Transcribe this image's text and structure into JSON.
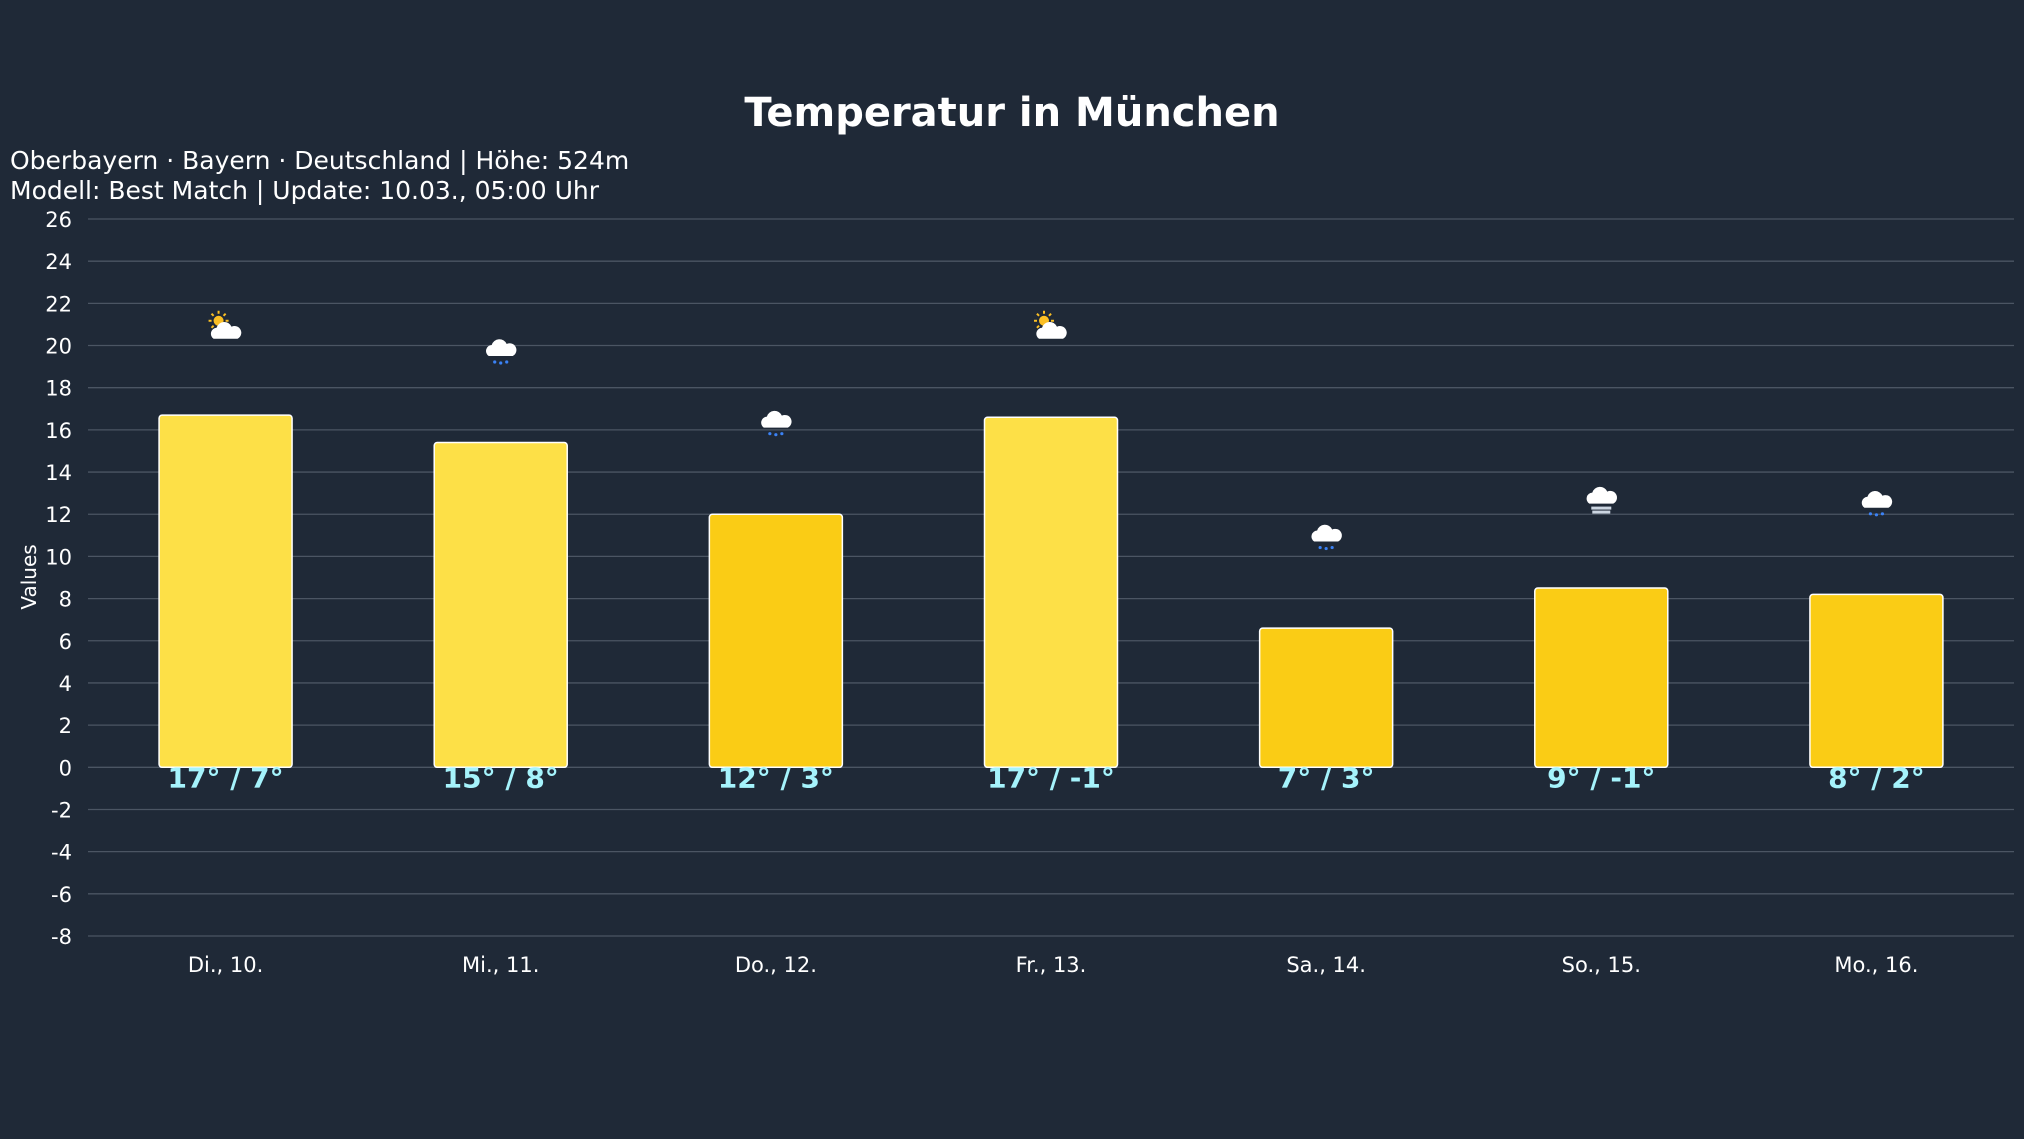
{
  "chart_data": {
    "type": "bar",
    "title": "Temperatur in München",
    "subtitle_lines": [
      "Oberbayern · Bayern · Deutschland | Höhe: 524m",
      "Modell: Best Match | Update: 10.03., 05:00 Uhr"
    ],
    "xlabel": "",
    "ylabel": "Values",
    "ylim": [
      -8,
      26
    ],
    "yticks": [
      -8,
      -6,
      -4,
      -2,
      0,
      2,
      4,
      6,
      8,
      10,
      12,
      14,
      16,
      18,
      20,
      22,
      24,
      26
    ],
    "grid": true,
    "legend": "none",
    "categories": [
      "Di., 10.",
      "Mi., 11.",
      "Do., 12.",
      "Fr., 13.",
      "Sa., 14.",
      "So., 15.",
      "Mo., 16."
    ],
    "values": [
      16.7,
      15.4,
      12.0,
      16.6,
      6.6,
      8.5,
      8.2
    ],
    "data_labels": [
      "17° / 7°",
      "15° / 8°",
      "12° / 3°",
      "17° / -1°",
      "7° / 3°",
      "9° / -1°",
      "8° / 2°"
    ],
    "weather_icons": [
      "partly-cloudy",
      "drizzle",
      "drizzle",
      "partly-cloudy",
      "drizzle",
      "fog",
      "drizzle"
    ],
    "icon_y_values": [
      20.7,
      19.6,
      16.2,
      20.7,
      10.8,
      12.6,
      12.4
    ],
    "bar_colors": [
      "#fde047",
      "#fde047",
      "#facc15",
      "#fde047",
      "#facc15",
      "#facc15",
      "#facc15"
    ],
    "colors": {
      "background": "#1f2937",
      "grid": "#4b5563",
      "label": "#a5f3fc",
      "bar_border": "#ffffff"
    }
  }
}
